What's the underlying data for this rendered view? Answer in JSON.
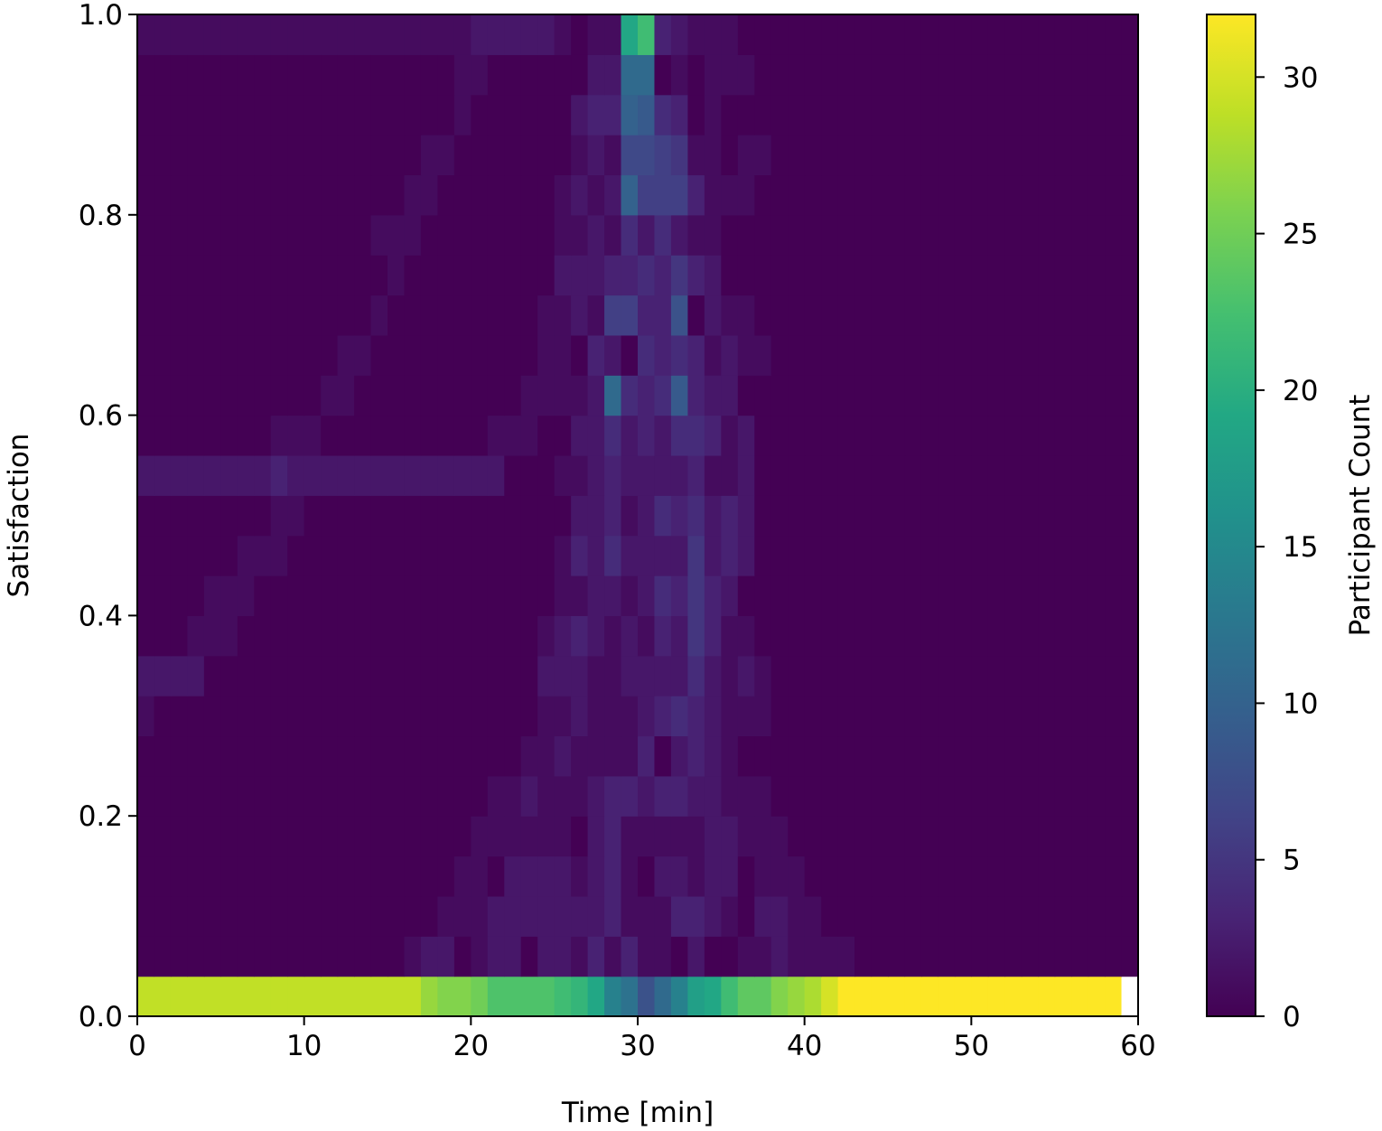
{
  "chart_data": {
    "type": "heatmap",
    "title": "",
    "xlabel": "Time [min]",
    "ylabel": "Satisfaction",
    "colorbar_label": "Participant Count",
    "xlim": [
      0,
      60
    ],
    "ylim": [
      0,
      1.0
    ],
    "vlim": [
      0,
      32
    ],
    "colormap": "viridis",
    "x_ticks": [
      0,
      10,
      20,
      30,
      40,
      50,
      60
    ],
    "x_tick_labels": [
      "0",
      "10",
      "20",
      "30",
      "40",
      "50",
      "60"
    ],
    "y_ticks": [
      0.0,
      0.2,
      0.4,
      0.6,
      0.8,
      1.0
    ],
    "y_tick_labels": [
      "0.0",
      "0.2",
      "0.4",
      "0.6",
      "0.8",
      "1.0"
    ],
    "colorbar_ticks": [
      0,
      5,
      10,
      15,
      20,
      25,
      30
    ],
    "colorbar_tick_labels": [
      "0",
      "5",
      "10",
      "15",
      "20",
      "25",
      "30"
    ],
    "x_bin_edges": [
      0,
      1,
      2,
      3,
      4,
      5,
      6,
      7,
      8,
      9,
      10,
      11,
      12,
      13,
      14,
      15,
      16,
      17,
      18,
      19,
      20,
      21,
      22,
      23,
      24,
      25,
      26,
      27,
      28,
      29,
      30,
      31,
      32,
      33,
      34,
      35,
      36,
      37,
      38,
      39,
      40,
      41,
      42,
      43,
      44,
      45,
      46,
      47,
      48,
      49,
      50,
      51,
      52,
      53,
      54,
      55,
      56,
      57,
      58,
      59,
      60
    ],
    "y_bin_edges": [
      0.0,
      0.04,
      0.08,
      0.12,
      0.16,
      0.2,
      0.24,
      0.28,
      0.32,
      0.36,
      0.4,
      0.44,
      0.48,
      0.52,
      0.56,
      0.6,
      0.64,
      0.68,
      0.72,
      0.76,
      0.8,
      0.84,
      0.88,
      0.92,
      0.96,
      1.0
    ],
    "counts": [
      [
        29,
        29,
        29,
        29,
        29,
        29,
        29,
        29,
        29,
        29,
        29,
        29,
        29,
        29,
        29,
        29,
        29,
        27,
        26,
        26,
        25,
        23,
        23,
        23,
        23,
        22,
        21,
        19,
        14,
        12,
        8,
        11,
        14,
        18,
        19,
        22,
        24,
        24,
        26,
        27,
        28,
        30,
        32,
        32,
        32,
        32,
        32,
        32,
        32,
        32,
        32,
        32,
        32,
        32,
        32,
        32,
        32,
        32,
        32,
        0
      ],
      [
        0,
        0,
        0,
        0,
        0,
        0,
        0,
        0,
        0,
        0,
        0,
        0,
        0,
        0,
        0,
        0,
        1,
        2,
        2,
        0,
        1,
        2,
        2,
        0,
        2,
        2,
        1,
        3,
        1,
        3,
        1,
        1,
        0,
        2,
        0,
        0,
        1,
        1,
        2,
        1,
        1,
        1,
        1,
        0,
        0,
        0,
        0,
        0,
        0,
        0,
        0,
        0,
        0,
        0,
        0,
        0,
        0,
        0,
        0,
        0
      ],
      [
        0,
        0,
        0,
        0,
        0,
        0,
        0,
        0,
        0,
        0,
        0,
        0,
        0,
        0,
        0,
        0,
        0,
        0,
        1,
        1,
        1,
        2,
        2,
        2,
        2,
        2,
        2,
        2,
        3,
        1,
        1,
        1,
        3,
        3,
        2,
        1,
        0,
        2,
        2,
        1,
        1,
        0,
        0,
        0,
        0,
        0,
        0,
        0,
        0,
        0,
        0,
        0,
        0,
        0,
        0,
        0,
        0,
        0,
        0,
        0
      ],
      [
        0,
        0,
        0,
        0,
        0,
        0,
        0,
        0,
        0,
        0,
        0,
        0,
        0,
        0,
        0,
        0,
        0,
        0,
        0,
        1,
        1,
        0,
        2,
        2,
        2,
        2,
        1,
        2,
        3,
        1,
        0,
        2,
        2,
        1,
        2,
        2,
        0,
        1,
        1,
        1,
        0,
        0,
        0,
        0,
        0,
        0,
        0,
        0,
        0,
        0,
        0,
        0,
        0,
        0,
        0,
        0,
        0,
        0,
        0,
        0
      ],
      [
        0,
        0,
        0,
        0,
        0,
        0,
        0,
        0,
        0,
        0,
        0,
        0,
        0,
        0,
        0,
        0,
        0,
        0,
        0,
        0,
        1,
        1,
        1,
        1,
        1,
        1,
        0,
        2,
        3,
        1,
        1,
        1,
        1,
        1,
        2,
        2,
        1,
        1,
        1,
        0,
        0,
        0,
        0,
        0,
        0,
        0,
        0,
        0,
        0,
        0,
        0,
        0,
        0,
        0,
        0,
        0,
        0,
        0,
        0,
        0
      ],
      [
        0,
        0,
        0,
        0,
        0,
        0,
        0,
        0,
        0,
        0,
        0,
        0,
        0,
        0,
        0,
        0,
        0,
        0,
        0,
        0,
        0,
        1,
        1,
        2,
        1,
        1,
        1,
        2,
        3,
        3,
        2,
        3,
        3,
        2,
        2,
        1,
        1,
        1,
        0,
        0,
        0,
        0,
        0,
        0,
        0,
        0,
        0,
        0,
        0,
        0,
        0,
        0,
        0,
        0,
        0,
        0,
        0,
        0,
        0,
        0
      ],
      [
        0,
        0,
        0,
        0,
        0,
        0,
        0,
        0,
        0,
        0,
        0,
        0,
        0,
        0,
        0,
        0,
        0,
        0,
        0,
        0,
        0,
        0,
        0,
        1,
        1,
        2,
        1,
        1,
        1,
        1,
        3,
        0,
        2,
        3,
        2,
        1,
        0,
        0,
        0,
        0,
        0,
        0,
        0,
        0,
        0,
        0,
        0,
        0,
        0,
        0,
        0,
        0,
        0,
        0,
        0,
        0,
        0,
        0,
        0,
        0
      ],
      [
        1,
        0,
        0,
        0,
        0,
        0,
        0,
        0,
        0,
        0,
        0,
        0,
        0,
        0,
        0,
        0,
        0,
        0,
        0,
        0,
        0,
        0,
        0,
        0,
        1,
        1,
        2,
        1,
        1,
        1,
        2,
        3,
        4,
        3,
        2,
        1,
        1,
        1,
        0,
        0,
        0,
        0,
        0,
        0,
        0,
        0,
        0,
        0,
        0,
        0,
        0,
        0,
        0,
        0,
        0,
        0,
        0,
        0,
        0,
        0
      ],
      [
        2,
        2,
        2,
        2,
        0,
        0,
        0,
        0,
        0,
        0,
        0,
        0,
        0,
        0,
        0,
        0,
        0,
        0,
        0,
        0,
        0,
        0,
        0,
        0,
        2,
        2,
        2,
        1,
        1,
        2,
        2,
        2,
        2,
        4,
        2,
        1,
        2,
        1,
        0,
        0,
        0,
        0,
        0,
        0,
        0,
        0,
        0,
        0,
        0,
        0,
        0,
        0,
        0,
        0,
        0,
        0,
        0,
        0,
        0,
        0
      ],
      [
        0,
        0,
        0,
        1,
        1,
        1,
        0,
        0,
        0,
        0,
        0,
        0,
        0,
        0,
        0,
        0,
        0,
        0,
        0,
        0,
        0,
        0,
        0,
        0,
        1,
        2,
        3,
        2,
        1,
        2,
        1,
        3,
        2,
        5,
        3,
        1,
        1,
        0,
        0,
        0,
        0,
        0,
        0,
        0,
        0,
        0,
        0,
        0,
        0,
        0,
        0,
        0,
        0,
        0,
        0,
        0,
        0,
        0,
        0,
        0
      ],
      [
        0,
        0,
        0,
        0,
        1,
        1,
        1,
        0,
        0,
        0,
        0,
        0,
        0,
        0,
        0,
        0,
        0,
        0,
        0,
        0,
        0,
        0,
        0,
        0,
        0,
        1,
        1,
        2,
        2,
        1,
        2,
        4,
        3,
        5,
        3,
        2,
        0,
        0,
        0,
        0,
        0,
        0,
        0,
        0,
        0,
        0,
        0,
        0,
        0,
        0,
        0,
        0,
        0,
        0,
        0,
        0,
        0,
        0,
        0,
        0
      ],
      [
        0,
        0,
        0,
        0,
        0,
        0,
        1,
        1,
        1,
        0,
        0,
        0,
        0,
        0,
        0,
        0,
        0,
        0,
        0,
        0,
        0,
        0,
        0,
        0,
        0,
        1,
        3,
        2,
        4,
        2,
        2,
        2,
        2,
        5,
        2,
        3,
        2,
        0,
        0,
        0,
        0,
        0,
        0,
        0,
        0,
        0,
        0,
        0,
        0,
        0,
        0,
        0,
        0,
        0,
        0,
        0,
        0,
        0,
        0,
        0
      ],
      [
        0,
        0,
        0,
        0,
        0,
        0,
        0,
        0,
        1,
        1,
        0,
        0,
        0,
        0,
        0,
        0,
        0,
        0,
        0,
        0,
        0,
        0,
        0,
        0,
        0,
        0,
        2,
        2,
        3,
        1,
        2,
        4,
        3,
        4,
        2,
        3,
        2,
        0,
        0,
        0,
        0,
        0,
        0,
        0,
        0,
        0,
        0,
        0,
        0,
        0,
        0,
        0,
        0,
        0,
        0,
        0,
        0,
        0,
        0,
        0
      ],
      [
        2,
        2,
        2,
        2,
        2,
        2,
        2,
        2,
        3,
        2,
        2,
        2,
        2,
        2,
        2,
        2,
        2,
        2,
        2,
        2,
        2,
        2,
        0,
        0,
        0,
        1,
        1,
        2,
        3,
        2,
        2,
        2,
        2,
        3,
        1,
        1,
        2,
        0,
        0,
        0,
        0,
        0,
        0,
        0,
        0,
        0,
        0,
        0,
        0,
        0,
        0,
        0,
        0,
        0,
        0,
        0,
        0,
        0,
        0,
        0
      ],
      [
        0,
        0,
        0,
        0,
        0,
        0,
        0,
        0,
        1,
        1,
        1,
        0,
        0,
        0,
        0,
        0,
        0,
        0,
        0,
        0,
        0,
        1,
        1,
        1,
        0,
        0,
        2,
        2,
        4,
        2,
        3,
        2,
        4,
        4,
        3,
        1,
        2,
        0,
        0,
        0,
        0,
        0,
        0,
        0,
        0,
        0,
        0,
        0,
        0,
        0,
        0,
        0,
        0,
        0,
        0,
        0,
        0,
        0,
        0,
        0
      ],
      [
        0,
        0,
        0,
        0,
        0,
        0,
        0,
        0,
        0,
        0,
        0,
        1,
        1,
        0,
        0,
        0,
        0,
        0,
        0,
        0,
        0,
        0,
        0,
        1,
        1,
        1,
        1,
        2,
        11,
        4,
        3,
        4,
        9,
        3,
        2,
        2,
        0,
        0,
        0,
        0,
        0,
        0,
        0,
        0,
        0,
        0,
        0,
        0,
        0,
        0,
        0,
        0,
        0,
        0,
        0,
        0,
        0,
        0,
        0,
        0
      ],
      [
        0,
        0,
        0,
        0,
        0,
        0,
        0,
        0,
        0,
        0,
        0,
        0,
        1,
        1,
        0,
        0,
        0,
        0,
        0,
        0,
        0,
        0,
        0,
        0,
        1,
        1,
        0,
        3,
        2,
        0,
        4,
        3,
        4,
        3,
        1,
        2,
        1,
        1,
        0,
        0,
        0,
        0,
        0,
        0,
        0,
        0,
        0,
        0,
        0,
        0,
        0,
        0,
        0,
        0,
        0,
        0,
        0,
        0,
        0,
        0
      ],
      [
        0,
        0,
        0,
        0,
        0,
        0,
        0,
        0,
        0,
        0,
        0,
        0,
        0,
        0,
        1,
        0,
        0,
        0,
        0,
        0,
        0,
        0,
        0,
        0,
        1,
        1,
        2,
        1,
        6,
        6,
        3,
        3,
        8,
        0,
        2,
        1,
        1,
        0,
        0,
        0,
        0,
        0,
        0,
        0,
        0,
        0,
        0,
        0,
        0,
        0,
        0,
        0,
        0,
        0,
        0,
        0,
        0,
        0,
        0,
        0
      ],
      [
        0,
        0,
        0,
        0,
        0,
        0,
        0,
        0,
        0,
        0,
        0,
        0,
        0,
        0,
        0,
        1,
        0,
        0,
        0,
        0,
        0,
        0,
        0,
        0,
        0,
        2,
        2,
        2,
        3,
        3,
        4,
        3,
        5,
        3,
        2,
        0,
        0,
        0,
        0,
        0,
        0,
        0,
        0,
        0,
        0,
        0,
        0,
        0,
        0,
        0,
        0,
        0,
        0,
        0,
        0,
        0,
        0,
        0,
        0,
        0
      ],
      [
        0,
        0,
        0,
        0,
        0,
        0,
        0,
        0,
        0,
        0,
        0,
        0,
        0,
        0,
        1,
        1,
        1,
        0,
        0,
        0,
        0,
        0,
        0,
        0,
        0,
        1,
        1,
        2,
        1,
        4,
        2,
        4,
        2,
        1,
        1,
        0,
        0,
        0,
        0,
        0,
        0,
        0,
        0,
        0,
        0,
        0,
        0,
        0,
        0,
        0,
        0,
        0,
        0,
        0,
        0,
        0,
        0,
        0,
        0,
        0
      ],
      [
        0,
        0,
        0,
        0,
        0,
        0,
        0,
        0,
        0,
        0,
        0,
        0,
        0,
        0,
        0,
        0,
        1,
        1,
        0,
        0,
        0,
        0,
        0,
        0,
        0,
        1,
        2,
        1,
        2,
        10,
        6,
        6,
        6,
        3,
        1,
        1,
        1,
        0,
        0,
        0,
        0,
        0,
        0,
        0,
        0,
        0,
        0,
        0,
        0,
        0,
        0,
        0,
        0,
        0,
        0,
        0,
        0,
        0,
        0,
        0
      ],
      [
        0,
        0,
        0,
        0,
        0,
        0,
        0,
        0,
        0,
        0,
        0,
        0,
        0,
        0,
        0,
        0,
        0,
        1,
        1,
        0,
        0,
        0,
        0,
        0,
        0,
        0,
        1,
        2,
        1,
        7,
        7,
        6,
        5,
        1,
        1,
        0,
        1,
        1,
        0,
        0,
        0,
        0,
        0,
        0,
        0,
        0,
        0,
        0,
        0,
        0,
        0,
        0,
        0,
        0,
        0,
        0,
        0,
        0,
        0,
        0
      ],
      [
        0,
        0,
        0,
        0,
        0,
        0,
        0,
        0,
        0,
        0,
        0,
        0,
        0,
        0,
        0,
        0,
        0,
        0,
        0,
        1,
        0,
        0,
        0,
        0,
        0,
        0,
        2,
        3,
        3,
        10,
        9,
        4,
        3,
        0,
        1,
        0,
        0,
        0,
        0,
        0,
        0,
        0,
        0,
        0,
        0,
        0,
        0,
        0,
        0,
        0,
        0,
        0,
        0,
        0,
        0,
        0,
        0,
        0,
        0,
        0
      ],
      [
        0,
        0,
        0,
        0,
        0,
        0,
        0,
        0,
        0,
        0,
        0,
        0,
        0,
        0,
        0,
        0,
        0,
        0,
        0,
        1,
        1,
        0,
        0,
        0,
        0,
        0,
        0,
        2,
        2,
        11,
        11,
        0,
        1,
        0,
        1,
        1,
        1,
        0,
        0,
        0,
        0,
        0,
        0,
        0,
        0,
        0,
        0,
        0,
        0,
        0,
        0,
        0,
        0,
        0,
        0,
        0,
        0,
        0,
        0,
        0
      ],
      [
        1,
        1,
        1,
        1,
        1,
        1,
        1,
        1,
        1,
        1,
        1,
        1,
        1,
        1,
        1,
        1,
        1,
        1,
        1,
        1,
        2,
        2,
        2,
        2,
        2,
        1,
        0,
        1,
        1,
        19,
        22,
        3,
        2,
        1,
        1,
        1,
        0,
        0,
        0,
        0,
        0,
        0,
        0,
        0,
        0,
        0,
        0,
        0,
        0,
        0,
        0,
        0,
        0,
        0,
        0,
        0,
        0,
        0,
        0,
        0
      ]
    ]
  }
}
